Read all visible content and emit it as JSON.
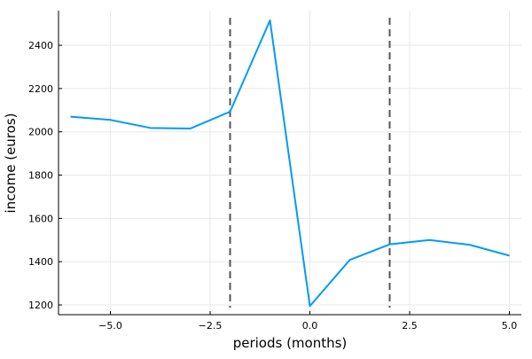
{
  "chart_data": {
    "type": "line",
    "title": "",
    "xlabel": "periods (months)",
    "ylabel": "income (euros)",
    "xlim": [
      -6.3,
      5.3
    ],
    "ylim": [
      1155,
      2560
    ],
    "xticks": [
      -5.0,
      -2.5,
      0.0,
      2.5,
      5.0
    ],
    "xtick_labels": [
      "−5.0",
      "−2.5",
      "0.0",
      "2.5",
      "5.0"
    ],
    "yticks": [
      1200,
      1400,
      1600,
      1800,
      2000,
      2200,
      2400
    ],
    "ytick_labels": [
      "1200",
      "1400",
      "1600",
      "1800",
      "2000",
      "2200",
      "2400"
    ],
    "grid": true,
    "legend": "none",
    "series": [
      {
        "color": "#009AFA",
        "x": [
          -6,
          -5,
          -4,
          -3,
          -2,
          -1,
          0,
          1,
          2,
          3,
          4,
          5
        ],
        "y": [
          2070,
          2055,
          2018,
          2015,
          2093,
          2515,
          1195,
          1408,
          1480,
          1500,
          1478,
          1428
        ]
      }
    ],
    "vlines": {
      "x": [
        -2,
        2
      ],
      "color": "#555555",
      "style": "dashed"
    }
  }
}
